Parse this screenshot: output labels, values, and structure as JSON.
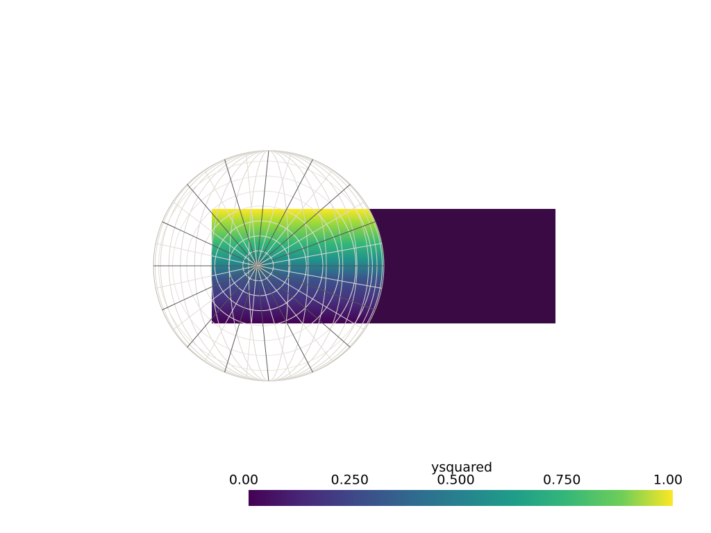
{
  "colorbar": {
    "title": "ysquared",
    "range": [
      0,
      1
    ],
    "ticks": [
      {
        "value": 0,
        "label": "0.00"
      },
      {
        "value": 0.25,
        "label": "0.250"
      },
      {
        "value": 0.5,
        "label": "0.500"
      },
      {
        "value": 0.75,
        "label": "0.750"
      },
      {
        "value": 1,
        "label": "1.00"
      }
    ]
  }
}
